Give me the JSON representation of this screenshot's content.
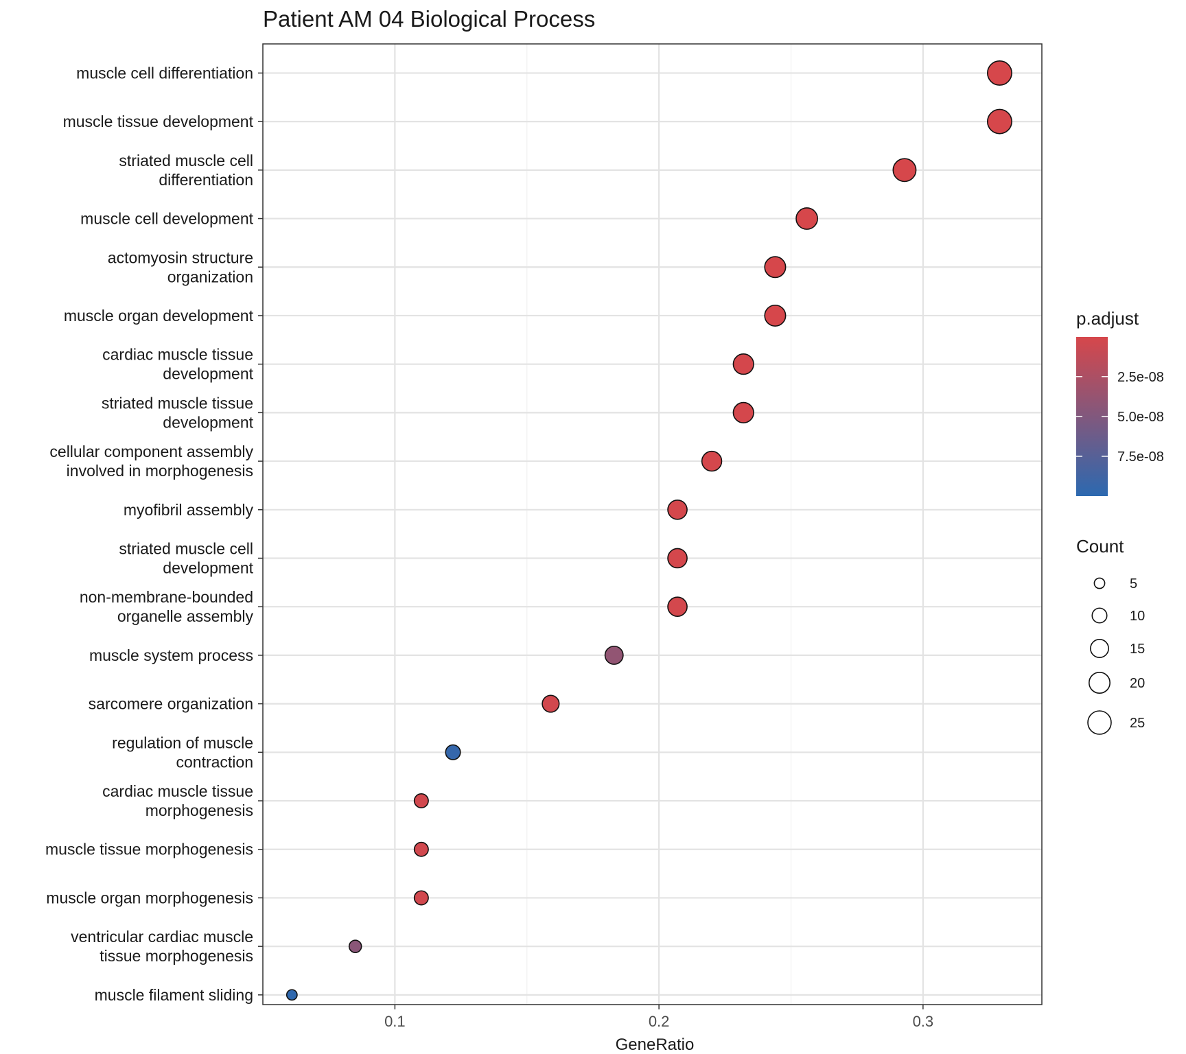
{
  "chart_data": {
    "type": "scatter",
    "title": "Patient AM 04 Biological Process",
    "xlabel": "GeneRatio",
    "ylabel": "",
    "xlim": [
      0.05,
      0.345
    ],
    "x_ticks": [
      0.1,
      0.2,
      0.3
    ],
    "x_tick_labels": [
      "0.1",
      "0.2",
      "0.3"
    ],
    "grid": true,
    "legend_placement": "right",
    "color_legend": {
      "title": "p.adjust",
      "ticks": [
        2.5e-08,
        5e-08,
        7.5e-08
      ],
      "tick_labels": [
        "2.5e-08",
        "5.0e-08",
        "7.5e-08"
      ],
      "range": [
        1e-10,
        1e-07
      ],
      "low_color": "#d6474b",
      "high_color": "#2c69b0"
    },
    "size_legend": {
      "title": "Count",
      "values": [
        5,
        10,
        15,
        20,
        25
      ],
      "labels": [
        "5",
        "10",
        "15",
        "20",
        "25"
      ]
    },
    "points": [
      {
        "term": [
          "muscle cell differentiation"
        ],
        "gene_ratio": 0.329,
        "count": 27,
        "p_adjust": 1e-10
      },
      {
        "term": [
          "muscle tissue development"
        ],
        "gene_ratio": 0.329,
        "count": 27,
        "p_adjust": 1e-10
      },
      {
        "term": [
          "striated muscle cell",
          "differentiation"
        ],
        "gene_ratio": 0.293,
        "count": 24,
        "p_adjust": 1e-10
      },
      {
        "term": [
          "muscle cell development"
        ],
        "gene_ratio": 0.256,
        "count": 21,
        "p_adjust": 1e-10
      },
      {
        "term": [
          "actomyosin structure",
          "organization"
        ],
        "gene_ratio": 0.244,
        "count": 20,
        "p_adjust": 1e-10
      },
      {
        "term": [
          "muscle organ development"
        ],
        "gene_ratio": 0.244,
        "count": 20,
        "p_adjust": 1e-10
      },
      {
        "term": [
          "cardiac muscle tissue",
          "development"
        ],
        "gene_ratio": 0.232,
        "count": 19,
        "p_adjust": 1e-09
      },
      {
        "term": [
          "striated muscle tissue",
          "development"
        ],
        "gene_ratio": 0.232,
        "count": 19,
        "p_adjust": 1e-09
      },
      {
        "term": [
          "cellular component assembly",
          "involved in morphogenesis"
        ],
        "gene_ratio": 0.22,
        "count": 18,
        "p_adjust": 1e-09
      },
      {
        "term": [
          "myofibril assembly"
        ],
        "gene_ratio": 0.207,
        "count": 17,
        "p_adjust": 1e-09
      },
      {
        "term": [
          "striated muscle cell",
          "development"
        ],
        "gene_ratio": 0.207,
        "count": 17,
        "p_adjust": 1e-09
      },
      {
        "term": [
          "non-membrane-bounded",
          "organelle assembly"
        ],
        "gene_ratio": 0.207,
        "count": 17,
        "p_adjust": 2e-09
      },
      {
        "term": [
          "muscle system process"
        ],
        "gene_ratio": 0.183,
        "count": 15,
        "p_adjust": 4e-08
      },
      {
        "term": [
          "sarcomere organization"
        ],
        "gene_ratio": 0.159,
        "count": 13,
        "p_adjust": 3e-09
      },
      {
        "term": [
          "regulation of muscle",
          "contraction"
        ],
        "gene_ratio": 0.122,
        "count": 10,
        "p_adjust": 9.5e-08
      },
      {
        "term": [
          "cardiac muscle tissue",
          "morphogenesis"
        ],
        "gene_ratio": 0.11,
        "count": 9,
        "p_adjust": 3e-09
      },
      {
        "term": [
          "muscle tissue morphogenesis"
        ],
        "gene_ratio": 0.11,
        "count": 9,
        "p_adjust": 3e-09
      },
      {
        "term": [
          "muscle organ morphogenesis"
        ],
        "gene_ratio": 0.11,
        "count": 9,
        "p_adjust": 3e-09
      },
      {
        "term": [
          "ventricular cardiac muscle",
          "tissue morphogenesis"
        ],
        "gene_ratio": 0.085,
        "count": 7,
        "p_adjust": 4.5e-08
      },
      {
        "term": [
          "muscle filament sliding"
        ],
        "gene_ratio": 0.061,
        "count": 5,
        "p_adjust": 9.8e-08
      }
    ]
  }
}
